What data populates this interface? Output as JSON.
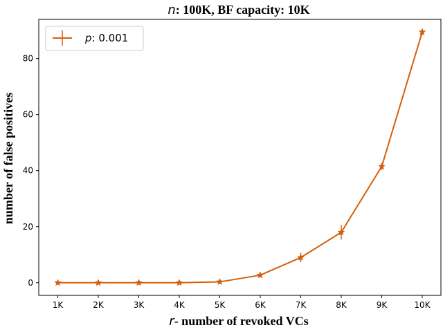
{
  "chart_data": {
    "type": "line",
    "title_var": "n",
    "title_rest": ": 100K, BF capacity: 10K",
    "xlabel_var": "r",
    "xlabel_rest": "- number of revoked VCs",
    "ylabel": "number of false positives",
    "categories": [
      "1K",
      "2K",
      "3K",
      "4K",
      "5K",
      "6K",
      "7K",
      "8K",
      "9K",
      "10K"
    ],
    "ylim": [
      -4.5,
      94
    ],
    "yticks": [
      0,
      20,
      40,
      60,
      80
    ],
    "grid": false,
    "legend_position": "top-left",
    "series": [
      {
        "legend_var": "p",
        "legend_rest": ": 0.001",
        "color": "#d35f0c",
        "values": [
          0,
          0,
          0,
          0,
          0.3,
          2.7,
          9.0,
          18.0,
          41.5,
          89.5
        ],
        "errors": [
          0.1,
          0.1,
          0.1,
          0.1,
          0.4,
          0.8,
          1.6,
          2.6,
          1.2,
          1.2
        ]
      }
    ]
  }
}
